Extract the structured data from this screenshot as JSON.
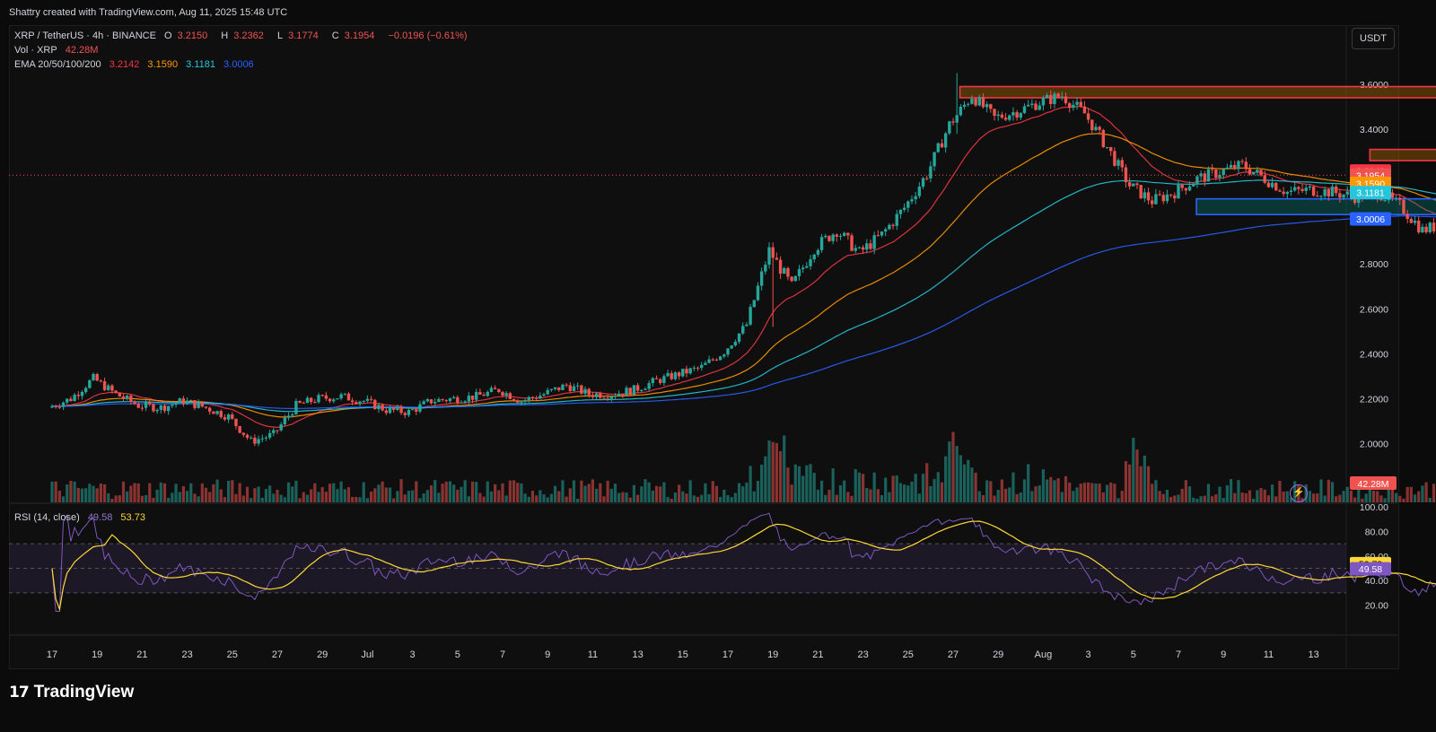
{
  "header": {
    "credit": "Shattry created with TradingView.com, Aug 11, 2025 15:48 UTC"
  },
  "legend": {
    "title": "XRP / TetherUS · 4h · BINANCE",
    "ohlc": [
      {
        "k": "O",
        "v": "3.2150"
      },
      {
        "k": "H",
        "v": "3.2362"
      },
      {
        "k": "L",
        "v": "3.1774"
      },
      {
        "k": "C",
        "v": "3.1954"
      }
    ],
    "change": "−0.0196 (−0.61%)",
    "vol_label": "Vol · XRP",
    "vol_value": "42.28M",
    "ema_label": "EMA 20/50/100/200",
    "ema_values": [
      "3.2142",
      "3.1590",
      "3.1181",
      "3.0006"
    ],
    "rsi_label": "RSI (14, close)",
    "rsi_values": [
      "49.58",
      "53.73"
    ]
  },
  "currency_button": "USDT",
  "footer": {
    "brand": "TradingView"
  },
  "colors": {
    "up": "#26a69a",
    "down": "#ef5350",
    "ema20": "#f23645",
    "ema50": "#ff9800",
    "ema100": "#26c6da",
    "ema200": "#2962ff",
    "rsi": "#7e57c2",
    "rsi_ma": "#fdd835"
  },
  "chart_data": [
    {
      "type": "candlestick",
      "symbol": "XRP/USDT",
      "interval": "4h",
      "y_ticks": [
        "3.6000",
        "3.4000",
        "3.2000",
        "3.0000",
        "2.8000",
        "2.6000",
        "2.4000",
        "2.2000",
        "2.0000"
      ],
      "ylim": [
        1.86,
        3.72
      ],
      "x_ticks": [
        "17",
        "19",
        "21",
        "23",
        "25",
        "27",
        "29",
        "Jul",
        "3",
        "5",
        "7",
        "9",
        "11",
        "13",
        "15",
        "17",
        "19",
        "21",
        "23",
        "25",
        "27",
        "29",
        "Aug",
        "3",
        "5",
        "7",
        "9",
        "11",
        "13"
      ],
      "price_path": [
        {
          "day": 0,
          "price": 2.16
        },
        {
          "day": 1,
          "price": 2.2
        },
        {
          "day": 2,
          "price": 2.29
        },
        {
          "day": 3,
          "price": 2.22
        },
        {
          "day": 4,
          "price": 2.17
        },
        {
          "day": 5,
          "price": 2.16
        },
        {
          "day": 6,
          "price": 2.19
        },
        {
          "day": 7,
          "price": 2.16
        },
        {
          "day": 8,
          "price": 2.12
        },
        {
          "day": 9,
          "price": 2.01
        },
        {
          "day": 10,
          "price": 2.04
        },
        {
          "day": 11,
          "price": 2.17
        },
        {
          "day": 12,
          "price": 2.2
        },
        {
          "day": 13,
          "price": 2.21
        },
        {
          "day": 14,
          "price": 2.19
        },
        {
          "day": 15,
          "price": 2.15
        },
        {
          "day": 16,
          "price": 2.14
        },
        {
          "day": 17,
          "price": 2.19
        },
        {
          "day": 18,
          "price": 2.2
        },
        {
          "day": 19,
          "price": 2.21
        },
        {
          "day": 20,
          "price": 2.24
        },
        {
          "day": 21,
          "price": 2.19
        },
        {
          "day": 22,
          "price": 2.22
        },
        {
          "day": 23,
          "price": 2.26
        },
        {
          "day": 24,
          "price": 2.22
        },
        {
          "day": 25,
          "price": 2.22
        },
        {
          "day": 26,
          "price": 2.24
        },
        {
          "day": 27,
          "price": 2.28
        },
        {
          "day": 28,
          "price": 2.31
        },
        {
          "day": 29,
          "price": 2.34
        },
        {
          "day": 30,
          "price": 2.41
        },
        {
          "day": 31,
          "price": 2.53
        },
        {
          "day": 32,
          "price": 2.86
        },
        {
          "day": 33,
          "price": 2.7
        },
        {
          "day": 34,
          "price": 2.87
        },
        {
          "day": 35,
          "price": 2.95
        },
        {
          "day": 36,
          "price": 2.85
        },
        {
          "day": 37,
          "price": 2.93
        },
        {
          "day": 38,
          "price": 3.05
        },
        {
          "day": 39,
          "price": 3.2
        },
        {
          "day": 40,
          "price": 3.42
        },
        {
          "day": 41,
          "price": 3.55
        },
        {
          "day": 42,
          "price": 3.45
        },
        {
          "day": 43,
          "price": 3.48
        },
        {
          "day": 44,
          "price": 3.52
        },
        {
          "day": 45,
          "price": 3.55
        },
        {
          "day": 46,
          "price": 3.47
        },
        {
          "day": 47,
          "price": 3.32
        },
        {
          "day": 48,
          "price": 3.15
        },
        {
          "day": 49,
          "price": 3.08
        },
        {
          "day": 50,
          "price": 3.12
        },
        {
          "day": 51,
          "price": 3.18
        },
        {
          "day": 52,
          "price": 3.21
        },
        {
          "day": 53,
          "price": 3.24
        },
        {
          "day": 54,
          "price": 3.18
        },
        {
          "day": 55,
          "price": 3.12
        },
        {
          "day": 56,
          "price": 3.13
        },
        {
          "day": 57,
          "price": 3.12
        },
        {
          "day": 58,
          "price": 3.1
        },
        {
          "day": 59,
          "price": 3.12
        },
        {
          "day": 60,
          "price": 3.06
        },
        {
          "day": 61,
          "price": 2.95
        },
        {
          "day": 62,
          "price": 2.98
        },
        {
          "day": 63,
          "price": 2.8
        },
        {
          "day": 64,
          "price": 2.86
        },
        {
          "day": 65,
          "price": 2.96
        },
        {
          "day": 66,
          "price": 3.07
        },
        {
          "day": 67,
          "price": 3.02
        },
        {
          "day": 68,
          "price": 2.95
        },
        {
          "day": 69,
          "price": 2.97
        },
        {
          "day": 70,
          "price": 3.04
        },
        {
          "day": 71,
          "price": 3.08
        },
        {
          "day": 72,
          "price": 3.32
        },
        {
          "day": 73,
          "price": 3.28
        },
        {
          "day": 74,
          "price": 3.26
        },
        {
          "day": 75,
          "price": 3.21
        },
        {
          "day": 76,
          "price": 3.22
        },
        {
          "day": 77,
          "price": 3.27
        },
        {
          "day": 78,
          "price": 3.1954
        }
      ],
      "zones": [
        {
          "kind": "supply",
          "low": 3.54,
          "high": 3.59,
          "start_day": 40.3,
          "end_day": 79.6
        },
        {
          "kind": "supply",
          "low": 3.26,
          "high": 3.31,
          "start_day": 58.5,
          "end_day": 79.6
        },
        {
          "kind": "supply",
          "low": 3.32,
          "high": 3.37,
          "start_day": 73.0,
          "end_day": 79.2
        },
        {
          "kind": "demand",
          "low": 3.02,
          "high": 3.09,
          "start_day": 50.8,
          "end_day": 79.6
        },
        {
          "kind": "demand",
          "low": 2.77,
          "high": 2.81,
          "start_day": 65.0,
          "end_day": 79.4
        }
      ],
      "axis_labels": [
        {
          "text": "3.2142",
          "price": 3.2142,
          "color": "#f23645"
        },
        {
          "text": "3.1954",
          "price": 3.1954,
          "color": "#ef5350"
        },
        {
          "text": "11:40",
          "price": 3.145,
          "color": "#ef5350"
        },
        {
          "text": "3.1590",
          "price": 3.159,
          "color": "#ff9800"
        },
        {
          "text": "3.1181",
          "price": 3.1181,
          "color": "#26c6da"
        },
        {
          "text": "3.0006",
          "price": 3.0006,
          "color": "#2962ff"
        }
      ],
      "current_price": 3.1954
    },
    {
      "type": "bar",
      "name": "Vol · XRP",
      "last_value_label": "42.28M",
      "spike_days": [
        32.0,
        40.2,
        48.2
      ]
    },
    {
      "type": "line",
      "name": "RSI (14, close)",
      "y_ticks": [
        "100.00",
        "80.00",
        "60.00",
        "40.00",
        "20.00"
      ],
      "ylim": [
        12,
        100
      ],
      "bands": [
        70,
        50,
        30
      ],
      "last_labels": [
        {
          "text": "53.73",
          "value": 53.73,
          "color": "#fdd835"
        },
        {
          "text": "49.58",
          "value": 49.58,
          "color": "#7e57c2"
        }
      ]
    }
  ]
}
